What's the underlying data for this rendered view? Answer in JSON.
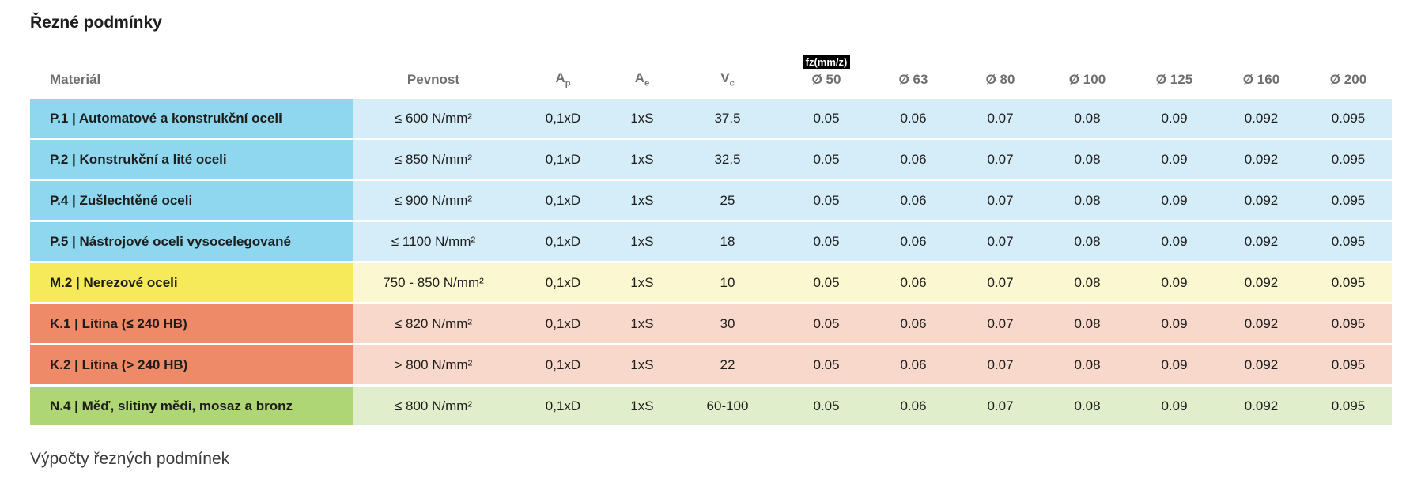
{
  "page": {
    "title": "Řezné podmínky",
    "footer_title": "Výpočty řezných podmínek"
  },
  "table": {
    "fz_badge": "fz(mm/z)",
    "headers": {
      "material": "Materiál",
      "strength": "Pevnost",
      "ap": {
        "base": "A",
        "sub": "p"
      },
      "ae": {
        "base": "A",
        "sub": "e"
      },
      "vc": {
        "base": "V",
        "sub": "c"
      },
      "d50": "Ø 50",
      "d63": "Ø 63",
      "d80": "Ø 80",
      "d100": "Ø 100",
      "d125": "Ø 125",
      "d160": "Ø 160",
      "d200": "Ø 200"
    },
    "colors": {
      "blue": {
        "label": "#8fd6ef",
        "cells": "#d4edf9"
      },
      "yellow": {
        "label": "#f6e95a",
        "cells": "#fbf7d0"
      },
      "orange": {
        "label": "#ee8a68",
        "cells": "#f9d8cc"
      },
      "green": {
        "label": "#afd674",
        "cells": "#e1eecb"
      }
    },
    "rows": [
      {
        "material": "P.1 | Automatové a konstrukční oceli",
        "strength": "≤ 600 N/mm²",
        "ap": "0,1xD",
        "ae": "1xS",
        "vc": "37.5",
        "fz": [
          "0.05",
          "0.06",
          "0.07",
          "0.08",
          "0.09",
          "0.092",
          "0.095"
        ],
        "color": "blue"
      },
      {
        "material": "P.2 | Konstrukční a lité oceli",
        "strength": "≤ 850 N/mm²",
        "ap": "0,1xD",
        "ae": "1xS",
        "vc": "32.5",
        "fz": [
          "0.05",
          "0.06",
          "0.07",
          "0.08",
          "0.09",
          "0.092",
          "0.095"
        ],
        "color": "blue"
      },
      {
        "material": "P.4 | Zušlechtěné oceli",
        "strength": "≤ 900 N/mm²",
        "ap": "0,1xD",
        "ae": "1xS",
        "vc": "25",
        "fz": [
          "0.05",
          "0.06",
          "0.07",
          "0.08",
          "0.09",
          "0.092",
          "0.095"
        ],
        "color": "blue"
      },
      {
        "material": "P.5 | Nástrojové oceli vysocelegované",
        "strength": "≤ 1100 N/mm²",
        "ap": "0,1xD",
        "ae": "1xS",
        "vc": "18",
        "fz": [
          "0.05",
          "0.06",
          "0.07",
          "0.08",
          "0.09",
          "0.092",
          "0.095"
        ],
        "color": "blue"
      },
      {
        "material": "M.2 | Nerezové oceli",
        "strength": "750 - 850 N/mm²",
        "ap": "0,1xD",
        "ae": "1xS",
        "vc": "10",
        "fz": [
          "0.05",
          "0.06",
          "0.07",
          "0.08",
          "0.09",
          "0.092",
          "0.095"
        ],
        "color": "yellow"
      },
      {
        "material": "K.1 | Litina (≤ 240 HB)",
        "strength": "≤ 820 N/mm²",
        "ap": "0,1xD",
        "ae": "1xS",
        "vc": "30",
        "fz": [
          "0.05",
          "0.06",
          "0.07",
          "0.08",
          "0.09",
          "0.092",
          "0.095"
        ],
        "color": "orange"
      },
      {
        "material": "K.2 | Litina (> 240 HB)",
        "strength": "> 800 N/mm²",
        "ap": "0,1xD",
        "ae": "1xS",
        "vc": "22",
        "fz": [
          "0.05",
          "0.06",
          "0.07",
          "0.08",
          "0.09",
          "0.092",
          "0.095"
        ],
        "color": "orange"
      },
      {
        "material": "N.4 | Měď, slitiny mědi, mosaz a bronz",
        "strength": "≤ 800 N/mm²",
        "ap": "0,1xD",
        "ae": "1xS",
        "vc": "60-100",
        "fz": [
          "0.05",
          "0.06",
          "0.07",
          "0.08",
          "0.09",
          "0.092",
          "0.095"
        ],
        "color": "green"
      }
    ]
  }
}
